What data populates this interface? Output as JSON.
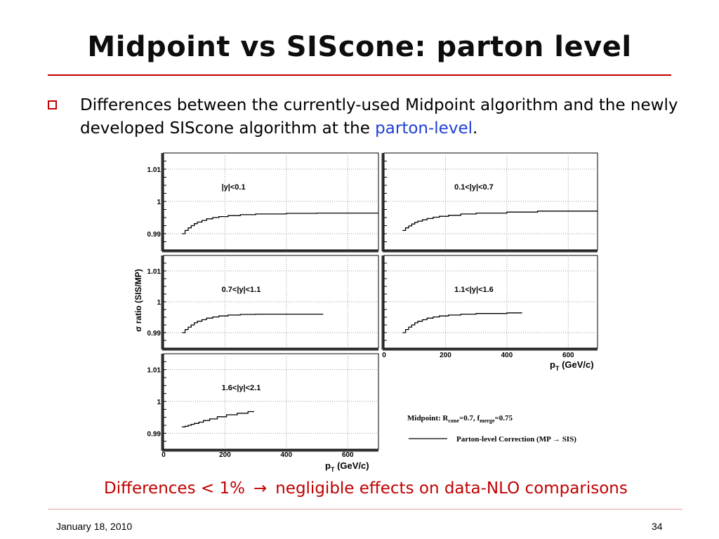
{
  "slide": {
    "title": "Midpoint vs SIScone: parton level",
    "bullet": {
      "text_before": "Differences between the currently-used Midpoint algorithm and the newly developed SIScone algorithm at the ",
      "highlight": "parton-level",
      "text_after": "."
    },
    "conclusion": {
      "left": "Differences < 1%",
      "arrow": "→",
      "right": "negligible effects on data-NLO comparisons"
    },
    "footer": {
      "date": "January 18, 2010",
      "page": "34"
    }
  },
  "colors": {
    "accent_red": "#c00000",
    "highlight_blue": "#1f3fd6"
  },
  "chart_data": {
    "type": "line",
    "ylabel": "σ ratio (SIS/MP)",
    "xlabel_main": "p",
    "xlabel_sub": "T",
    "xlabel_unit": " (GeV/c)",
    "xlim": [
      0,
      700
    ],
    "ylim": [
      0.985,
      1.015
    ],
    "x_ticks": [
      0,
      200,
      400,
      600
    ],
    "y_ticks": [
      0.99,
      1,
      1.01
    ],
    "y_tick_labels": [
      "0.99",
      "1",
      "1.01"
    ],
    "x_tick_labels": [
      "0",
      "200",
      "400",
      "600"
    ],
    "panels": [
      {
        "label": "|y|<0.1",
        "x": [
          60,
          70,
          80,
          90,
          100,
          110,
          125,
          140,
          160,
          180,
          210,
          250,
          300,
          400,
          500,
          700
        ],
        "y": [
          0.99,
          0.991,
          0.9918,
          0.9925,
          0.9931,
          0.9936,
          0.9941,
          0.9946,
          0.995,
          0.9953,
          0.9956,
          0.9959,
          0.9961,
          0.9963,
          0.9964,
          0.9964
        ]
      },
      {
        "label": "0.1<|y|<0.7",
        "x": [
          60,
          70,
          80,
          90,
          100,
          110,
          125,
          140,
          160,
          180,
          210,
          250,
          300,
          400,
          500,
          700
        ],
        "y": [
          0.991,
          0.9918,
          0.9924,
          0.993,
          0.9935,
          0.9939,
          0.9943,
          0.9947,
          0.9951,
          0.9954,
          0.9957,
          0.9961,
          0.9964,
          0.9967,
          0.997,
          0.9972
        ]
      },
      {
        "label": "0.7<|y|<1.1",
        "x": [
          60,
          70,
          80,
          90,
          100,
          110,
          125,
          140,
          160,
          180,
          210,
          250,
          300,
          400,
          520
        ],
        "y": [
          0.99,
          0.991,
          0.9918,
          0.9925,
          0.9932,
          0.9937,
          0.9942,
          0.9947,
          0.9951,
          0.9954,
          0.9957,
          0.9959,
          0.996,
          0.996,
          0.996
        ]
      },
      {
        "label": "1.1<|y|<1.6",
        "x": [
          60,
          70,
          80,
          90,
          100,
          110,
          125,
          140,
          160,
          180,
          210,
          250,
          300,
          400,
          450
        ],
        "y": [
          0.99,
          0.991,
          0.9918,
          0.9925,
          0.9932,
          0.9937,
          0.9942,
          0.9947,
          0.9951,
          0.9954,
          0.9957,
          0.996,
          0.9962,
          0.9964,
          0.9964
        ]
      },
      {
        "label": "1.6<|y|<2.1",
        "x": [
          60,
          70,
          80,
          90,
          100,
          115,
          130,
          150,
          175,
          205,
          240,
          275,
          295
        ],
        "y": [
          0.992,
          0.9922,
          0.9925,
          0.9928,
          0.9931,
          0.9935,
          0.994,
          0.9945,
          0.9952,
          0.9958,
          0.9963,
          0.9968,
          0.9968
        ]
      }
    ],
    "legend": {
      "line1_prefix": "Midpoint:  R",
      "line1_sub1": "cone",
      "line1_mid": "=0.7,  f",
      "line1_sub2": "merge",
      "line1_end": "=0.75",
      "line2": "Parton-level Correction (MP → SIS)"
    }
  }
}
